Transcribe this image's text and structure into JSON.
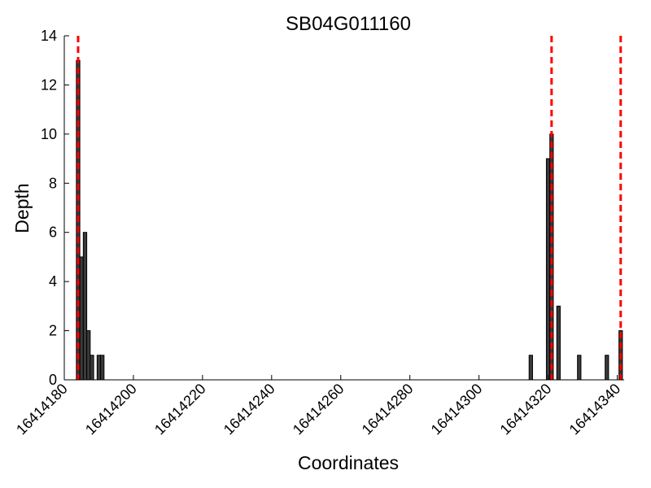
{
  "chart_data": {
    "type": "bar",
    "title": "SB04G011160",
    "xlabel": "Coordinates",
    "ylabel": "Depth",
    "xlim": [
      16414180,
      16414342
    ],
    "ylim": [
      0,
      14
    ],
    "xticks": [
      16414180,
      16414200,
      16414220,
      16414240,
      16414260,
      16414280,
      16414300,
      16414320,
      16414340
    ],
    "xtick_labels": [
      "16414180",
      "16414200",
      "16414220",
      "16414240",
      "16414260",
      "16414280",
      "16414300",
      "16414320",
      "16414340"
    ],
    "yticks": [
      0,
      2,
      4,
      6,
      8,
      10,
      12,
      14
    ],
    "ytick_labels": [
      "0",
      "2",
      "4",
      "6",
      "8",
      "10",
      "12",
      "14"
    ],
    "bar_width": 1,
    "bars": [
      {
        "x": 16414184,
        "value": 13
      },
      {
        "x": 16414185,
        "value": 5
      },
      {
        "x": 16414186,
        "value": 6
      },
      {
        "x": 16414187,
        "value": 2
      },
      {
        "x": 16414188,
        "value": 1
      },
      {
        "x": 16414190,
        "value": 1
      },
      {
        "x": 16414191,
        "value": 1
      },
      {
        "x": 16414315,
        "value": 1
      },
      {
        "x": 16414320,
        "value": 9
      },
      {
        "x": 16414321,
        "value": 10
      },
      {
        "x": 16414323,
        "value": 3
      },
      {
        "x": 16414329,
        "value": 1
      },
      {
        "x": 16414337,
        "value": 1
      },
      {
        "x": 16414341,
        "value": 2
      }
    ],
    "reference_lines": [
      16414184,
      16414321,
      16414341
    ],
    "grid": false,
    "colors": {
      "bar_fill": "#3a3a3a",
      "bar_edge": "#000000",
      "reference_line": "#ff0000",
      "axis": "#000000"
    }
  }
}
